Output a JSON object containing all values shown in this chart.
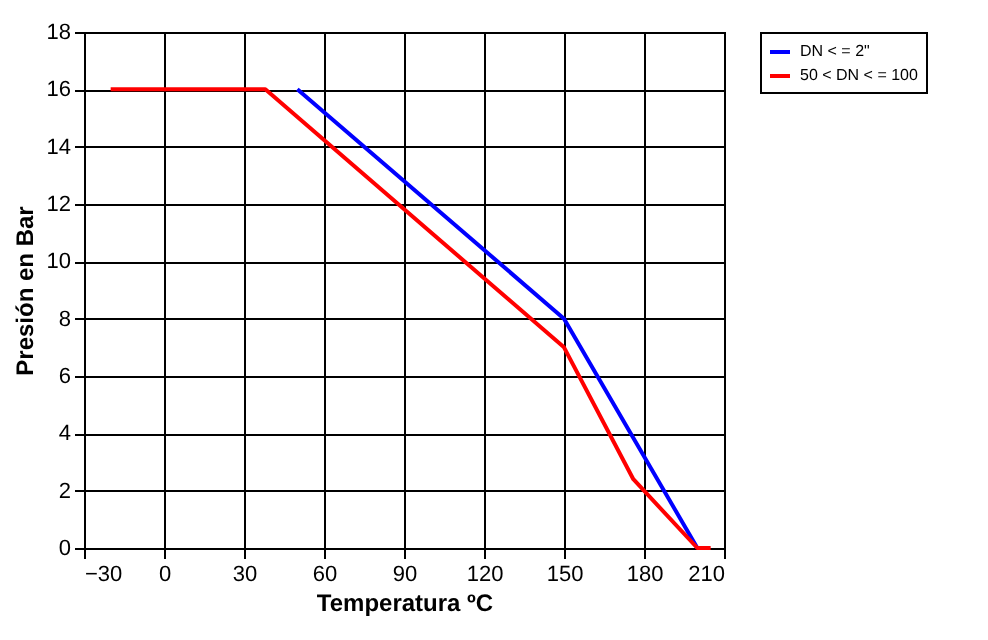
{
  "chart_data": {
    "type": "line",
    "xlabel": "Temperatura ºC",
    "ylabel": "Presión en Bar",
    "series": [
      {
        "name": "DN < = 2\"",
        "color": "#0000ff",
        "x": [
          50,
          150,
          200
        ],
        "values": [
          16,
          8,
          0
        ]
      },
      {
        "name": "50 < DN < = 100",
        "color": "#ff0000",
        "x": [
          -20,
          38,
          150,
          176,
          200,
          205
        ],
        "values": [
          16,
          16,
          7,
          2.4,
          0,
          0
        ]
      }
    ],
    "xlim": [
      -30,
      210
    ],
    "xticks": [
      -30,
      0,
      30,
      60,
      90,
      120,
      150,
      180,
      210
    ],
    "ylim": [
      0,
      18
    ],
    "yticks": [
      0,
      2,
      4,
      6,
      8,
      10,
      12,
      14,
      16,
      18
    ],
    "grid": true,
    "legend": "right",
    "marker": "none",
    "line_style": "solid"
  }
}
